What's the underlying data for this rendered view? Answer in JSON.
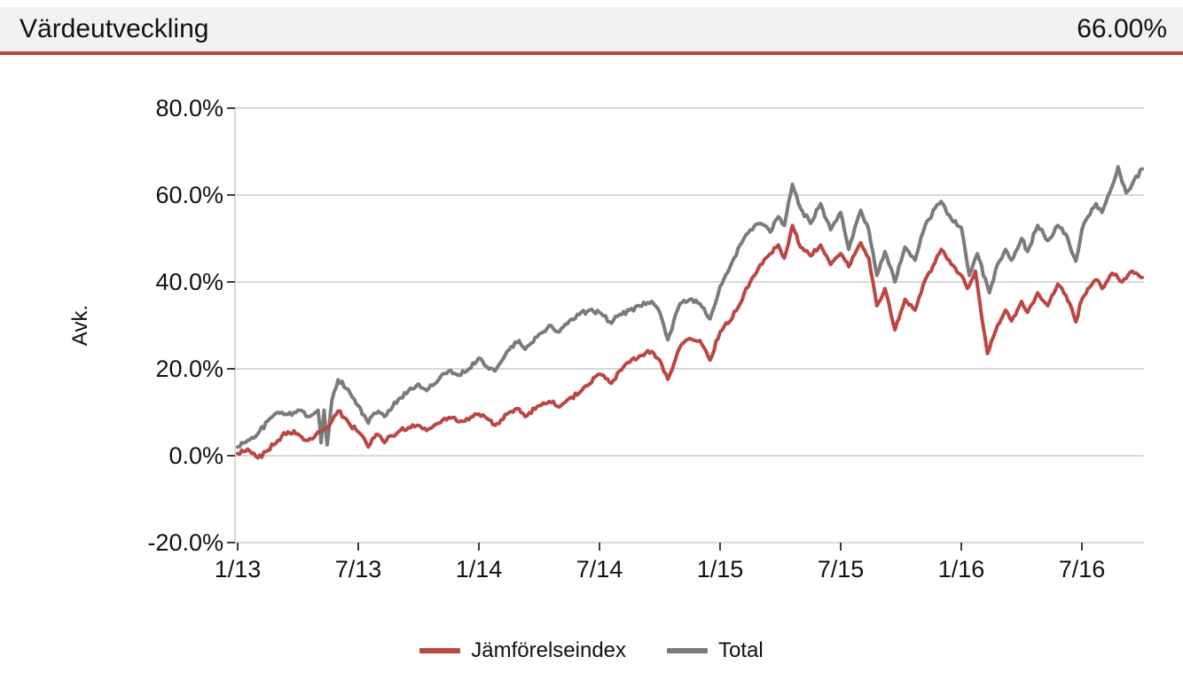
{
  "header": {
    "title": "Värdeutveckling",
    "value": "66.00%"
  },
  "chart_data": {
    "type": "line",
    "title": "Värdeutveckling",
    "header_value": "66.00%",
    "xlabel": "",
    "ylabel": "Avk.",
    "ylim": [
      -20,
      80
    ],
    "ytick_step": 20,
    "grid": "horizontal",
    "legend_position": "bottom",
    "ytick_labels": [
      "80.0%",
      "60.0%",
      "40.0%",
      "20.0%",
      "0.0%",
      "-20.0%"
    ],
    "xtick_labels": [
      "1/13",
      "7/13",
      "1/14",
      "7/14",
      "1/15",
      "7/15",
      "1/16",
      "7/16"
    ],
    "x_unit": "months_since_jan_2013",
    "xtick_t": [
      0,
      6,
      12,
      18,
      24,
      30,
      36,
      42
    ],
    "colors": {
      "accent_red": "#bb4743",
      "line_gray": "#7b7b7b",
      "grid": "#d9d9d9",
      "tick": "#3c3c3c",
      "header_bg": "#f2f2f2",
      "text": "#111111"
    },
    "render": {
      "points_per_month": 10,
      "jitter_amplitude": 0.6
    },
    "series": [
      {
        "name": "Jämförelseindex",
        "color": "#bb4743",
        "points": [
          [
            0,
            0.5
          ],
          [
            0.5,
            1.5
          ],
          [
            1,
            -0.5
          ],
          [
            1.5,
            1.2
          ],
          [
            2,
            3.5
          ],
          [
            2.5,
            5.5
          ],
          [
            3,
            5
          ],
          [
            3.5,
            3.5
          ],
          [
            4,
            5.5
          ],
          [
            4.5,
            6.5
          ],
          [
            5,
            10.3
          ],
          [
            5.3,
            8.8
          ],
          [
            5.6,
            7
          ],
          [
            6,
            5.5
          ],
          [
            6.5,
            2
          ],
          [
            6.8,
            4.2
          ],
          [
            7,
            4.8
          ],
          [
            7.3,
            3
          ],
          [
            7.6,
            4.6
          ],
          [
            8,
            5.5
          ],
          [
            8.5,
            6.5
          ],
          [
            9,
            7
          ],
          [
            9.4,
            5.8
          ],
          [
            10,
            7.5
          ],
          [
            10.5,
            8.8
          ],
          [
            11,
            7.8
          ],
          [
            11.5,
            8.3
          ],
          [
            12,
            9.6
          ],
          [
            12.4,
            8.6
          ],
          [
            12.8,
            7
          ],
          [
            13.4,
            9.6
          ],
          [
            14,
            10.8
          ],
          [
            14.3,
            9
          ],
          [
            15,
            11.5
          ],
          [
            15.5,
            12.5
          ],
          [
            16,
            11.2
          ],
          [
            16.5,
            13.2
          ],
          [
            17,
            14.5
          ],
          [
            17.5,
            16.5
          ],
          [
            18,
            18.8
          ],
          [
            18.6,
            16.7
          ],
          [
            19,
            19.5
          ],
          [
            19.5,
            21.5
          ],
          [
            20,
            23
          ],
          [
            20.6,
            24
          ],
          [
            21,
            22
          ],
          [
            21.4,
            17.6
          ],
          [
            22,
            25
          ],
          [
            22.5,
            27
          ],
          [
            23,
            26.5
          ],
          [
            23.5,
            22
          ],
          [
            24,
            28.5
          ],
          [
            24.5,
            31
          ],
          [
            25,
            35
          ],
          [
            25.5,
            40
          ],
          [
            26,
            44
          ],
          [
            26.5,
            46.5
          ],
          [
            26.9,
            48.5
          ],
          [
            27.2,
            45.5
          ],
          [
            27.6,
            53
          ],
          [
            28,
            48
          ],
          [
            28.5,
            46
          ],
          [
            29,
            48.5
          ],
          [
            29.5,
            44
          ],
          [
            30,
            46.5
          ],
          [
            30.4,
            43.5
          ],
          [
            31,
            49
          ],
          [
            31.4,
            45.5
          ],
          [
            31.8,
            34.5
          ],
          [
            32.2,
            38.5
          ],
          [
            32.7,
            29
          ],
          [
            33.2,
            36
          ],
          [
            33.7,
            33.5
          ],
          [
            34.2,
            40.5
          ],
          [
            34.7,
            44.5
          ],
          [
            35,
            47.5
          ],
          [
            35.5,
            44
          ],
          [
            36,
            41.5
          ],
          [
            36.3,
            38.5
          ],
          [
            36.7,
            42.5
          ],
          [
            37.3,
            23.5
          ],
          [
            37.8,
            30
          ],
          [
            38.2,
            33.5
          ],
          [
            38.5,
            31
          ],
          [
            39,
            35.5
          ],
          [
            39.3,
            33
          ],
          [
            39.8,
            37.5
          ],
          [
            40.3,
            34.5
          ],
          [
            40.8,
            39.5
          ],
          [
            41.2,
            37
          ],
          [
            41.7,
            30.8
          ],
          [
            42,
            36
          ],
          [
            42.3,
            38.5
          ],
          [
            42.7,
            40.5
          ],
          [
            43,
            38.5
          ],
          [
            43.5,
            42
          ],
          [
            44,
            40
          ],
          [
            44.5,
            42.5
          ],
          [
            45,
            41
          ]
        ]
      },
      {
        "name": "Total",
        "color": "#7b7b7b",
        "points": [
          [
            0,
            2
          ],
          [
            0.5,
            3.5
          ],
          [
            1,
            5
          ],
          [
            1.5,
            8
          ],
          [
            2,
            10
          ],
          [
            2.5,
            9.5
          ],
          [
            3,
            10.5
          ],
          [
            3.5,
            9
          ],
          [
            4,
            10.5
          ],
          [
            4.15,
            3
          ],
          [
            4.3,
            10.5
          ],
          [
            4.45,
            2.5
          ],
          [
            4.7,
            13
          ],
          [
            5,
            17.5
          ],
          [
            5.4,
            15.5
          ],
          [
            5.7,
            13.5
          ],
          [
            6,
            11.5
          ],
          [
            6.5,
            7.5
          ],
          [
            6.8,
            9.8
          ],
          [
            7,
            10.2
          ],
          [
            7.3,
            9
          ],
          [
            7.6,
            10.5
          ],
          [
            8,
            13
          ],
          [
            8.5,
            15
          ],
          [
            9,
            16.5
          ],
          [
            9.4,
            15
          ],
          [
            10,
            17.5
          ],
          [
            10.5,
            19.5
          ],
          [
            11,
            18.5
          ],
          [
            11.5,
            20
          ],
          [
            12,
            22.5
          ],
          [
            12.4,
            20.5
          ],
          [
            12.8,
            19.5
          ],
          [
            13.4,
            24
          ],
          [
            14,
            26.5
          ],
          [
            14.3,
            24.5
          ],
          [
            15,
            28
          ],
          [
            15.5,
            30
          ],
          [
            16,
            28.5
          ],
          [
            16.5,
            31
          ],
          [
            17,
            32.5
          ],
          [
            17.5,
            33.5
          ],
          [
            18,
            33
          ],
          [
            18.6,
            30.5
          ],
          [
            19,
            32.5
          ],
          [
            19.5,
            33.5
          ],
          [
            20,
            34.5
          ],
          [
            20.6,
            35.5
          ],
          [
            21,
            33
          ],
          [
            21.4,
            26.7
          ],
          [
            22,
            35
          ],
          [
            22.5,
            36
          ],
          [
            23,
            35
          ],
          [
            23.5,
            31.5
          ],
          [
            24,
            39
          ],
          [
            24.5,
            43.5
          ],
          [
            25,
            48.5
          ],
          [
            25.5,
            52
          ],
          [
            26,
            53.5
          ],
          [
            26.5,
            51.5
          ],
          [
            26.9,
            55
          ],
          [
            27.2,
            53
          ],
          [
            27.6,
            62.5
          ],
          [
            28,
            57
          ],
          [
            28.5,
            53.5
          ],
          [
            29,
            58
          ],
          [
            29.5,
            52
          ],
          [
            30,
            56
          ],
          [
            30.4,
            47.5
          ],
          [
            31,
            56.5
          ],
          [
            31.4,
            52
          ],
          [
            31.8,
            41.5
          ],
          [
            32.2,
            47
          ],
          [
            32.7,
            40
          ],
          [
            33.2,
            48
          ],
          [
            33.7,
            45
          ],
          [
            34.2,
            53
          ],
          [
            34.7,
            57
          ],
          [
            35,
            58.5
          ],
          [
            35.5,
            54.5
          ],
          [
            36,
            52.5
          ],
          [
            36.4,
            41.5
          ],
          [
            36.8,
            46.5
          ],
          [
            37.4,
            37.5
          ],
          [
            37.8,
            44
          ],
          [
            38.2,
            47.5
          ],
          [
            38.5,
            45
          ],
          [
            39,
            50
          ],
          [
            39.3,
            47
          ],
          [
            39.8,
            53
          ],
          [
            40.3,
            49.5
          ],
          [
            40.8,
            53
          ],
          [
            41.2,
            51
          ],
          [
            41.7,
            44.8
          ],
          [
            42,
            52
          ],
          [
            42.3,
            55
          ],
          [
            42.7,
            58
          ],
          [
            43,
            56
          ],
          [
            43.5,
            62
          ],
          [
            43.8,
            66.5
          ],
          [
            44.2,
            60.5
          ],
          [
            44.6,
            63.5
          ],
          [
            45,
            66
          ]
        ]
      }
    ]
  }
}
